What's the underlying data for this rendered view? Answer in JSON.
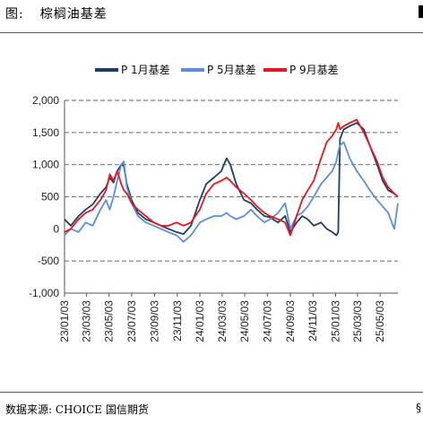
{
  "header": {
    "label": "图:",
    "title": "棕榈油基差"
  },
  "source": {
    "text": "数据来源: CHOICE 国信期货",
    "edge_text": "§"
  },
  "colors": {
    "p1": "#1f3d6b",
    "p5": "#5b8fd6",
    "p9": "#e8141e",
    "grid": "#7a7a7a",
    "axis": "#555555"
  },
  "chart_data": {
    "type": "line",
    "title": "",
    "xlabel": "",
    "ylabel": "",
    "ylim": [
      -1000,
      2000
    ],
    "yticks": [
      -1000,
      -500,
      0,
      500,
      1000,
      1500,
      2000
    ],
    "ytick_labels": [
      "-1,000",
      "-500",
      "0",
      "500",
      "1,000",
      "1,500",
      "2,000"
    ],
    "xticks": [
      "23/01/03",
      "23/03/03",
      "23/05/03",
      "23/07/03",
      "23/09/03",
      "23/11/03",
      "24/01/03",
      "24/03/03",
      "24/05/03",
      "24/07/03",
      "24/09/03",
      "24/11/03",
      "25/01/03",
      "25/03/03",
      "25/05/03"
    ],
    "grid": "horizontal dashed",
    "legend_position": "top",
    "x_range": [
      "2023-01-03",
      "2025-06-20"
    ],
    "series": [
      {
        "name": "P 1月基差",
        "color": "#1f3d6b",
        "points": [
          [
            "2023-01-03",
            150
          ],
          [
            "2023-01-20",
            50
          ],
          [
            "2023-02-10",
            200
          ],
          [
            "2023-03-01",
            300
          ],
          [
            "2023-03-20",
            380
          ],
          [
            "2023-04-10",
            550
          ],
          [
            "2023-04-25",
            650
          ],
          [
            "2023-05-05",
            800
          ],
          [
            "2023-05-15",
            720
          ],
          [
            "2023-05-25",
            900
          ],
          [
            "2023-06-05",
            1000
          ],
          [
            "2023-06-12",
            980
          ],
          [
            "2023-06-20",
            700
          ],
          [
            "2023-07-03",
            450
          ],
          [
            "2023-07-20",
            250
          ],
          [
            "2023-08-10",
            150
          ],
          [
            "2023-09-01",
            100
          ],
          [
            "2023-09-20",
            50
          ],
          [
            "2023-10-10",
            0
          ],
          [
            "2023-11-01",
            -50
          ],
          [
            "2023-11-20",
            -80
          ],
          [
            "2023-12-10",
            50
          ],
          [
            "2024-01-03",
            450
          ],
          [
            "2024-01-20",
            700
          ],
          [
            "2024-02-10",
            800
          ],
          [
            "2024-03-01",
            900
          ],
          [
            "2024-03-15",
            1100
          ],
          [
            "2024-03-25",
            1000
          ],
          [
            "2024-04-10",
            700
          ],
          [
            "2024-05-01",
            450
          ],
          [
            "2024-05-20",
            400
          ],
          [
            "2024-06-05",
            300
          ],
          [
            "2024-06-25",
            200
          ],
          [
            "2024-07-10",
            180
          ],
          [
            "2024-08-01",
            100
          ],
          [
            "2024-08-20",
            200
          ],
          [
            "2024-09-03",
            -50
          ],
          [
            "2024-09-20",
            100
          ],
          [
            "2024-10-05",
            200
          ],
          [
            "2024-10-20",
            150
          ],
          [
            "2024-11-05",
            50
          ],
          [
            "2024-11-25",
            100
          ],
          [
            "2024-12-10",
            0
          ],
          [
            "2024-12-25",
            -50
          ],
          [
            "2025-01-05",
            -100
          ],
          [
            "2025-01-10",
            -50
          ],
          [
            "2025-01-15",
            1400
          ],
          [
            "2025-01-25",
            1550
          ],
          [
            "2025-02-10",
            1600
          ],
          [
            "2025-03-01",
            1650
          ],
          [
            "2025-03-20",
            1550
          ],
          [
            "2025-04-05",
            1300
          ],
          [
            "2025-04-25",
            1000
          ],
          [
            "2025-05-10",
            750
          ],
          [
            "2025-05-25",
            600
          ],
          [
            "2025-06-10",
            550
          ],
          [
            "2025-06-20",
            500
          ]
        ]
      },
      {
        "name": "P 5月基差",
        "color": "#5b8fd6",
        "points": [
          [
            "2023-01-03",
            -100
          ],
          [
            "2023-01-20",
            0
          ],
          [
            "2023-02-10",
            -50
          ],
          [
            "2023-03-01",
            100
          ],
          [
            "2023-03-20",
            50
          ],
          [
            "2023-04-10",
            300
          ],
          [
            "2023-04-25",
            450
          ],
          [
            "2023-05-05",
            300
          ],
          [
            "2023-05-15",
            500
          ],
          [
            "2023-05-25",
            750
          ],
          [
            "2023-06-05",
            1000
          ],
          [
            "2023-06-12",
            1050
          ],
          [
            "2023-06-20",
            650
          ],
          [
            "2023-07-03",
            400
          ],
          [
            "2023-07-20",
            200
          ],
          [
            "2023-08-10",
            100
          ],
          [
            "2023-09-01",
            50
          ],
          [
            "2023-09-20",
            0
          ],
          [
            "2023-10-10",
            -50
          ],
          [
            "2023-11-01",
            -100
          ],
          [
            "2023-11-20",
            -200
          ],
          [
            "2023-12-10",
            -100
          ],
          [
            "2024-01-03",
            100
          ],
          [
            "2024-01-20",
            150
          ],
          [
            "2024-02-10",
            200
          ],
          [
            "2024-03-01",
            200
          ],
          [
            "2024-03-15",
            250
          ],
          [
            "2024-03-25",
            200
          ],
          [
            "2024-04-10",
            150
          ],
          [
            "2024-05-01",
            200
          ],
          [
            "2024-05-20",
            300
          ],
          [
            "2024-06-05",
            200
          ],
          [
            "2024-06-25",
            100
          ],
          [
            "2024-07-10",
            150
          ],
          [
            "2024-08-01",
            250
          ],
          [
            "2024-08-20",
            400
          ],
          [
            "2024-09-03",
            0
          ],
          [
            "2024-09-20",
            200
          ],
          [
            "2024-10-05",
            250
          ],
          [
            "2024-10-20",
            350
          ],
          [
            "2024-11-05",
            500
          ],
          [
            "2024-11-25",
            700
          ],
          [
            "2024-12-10",
            800
          ],
          [
            "2024-12-25",
            900
          ],
          [
            "2025-01-05",
            1050
          ],
          [
            "2025-01-10",
            1200
          ],
          [
            "2025-01-15",
            1300
          ],
          [
            "2025-01-25",
            1350
          ],
          [
            "2025-02-10",
            1100
          ],
          [
            "2025-03-01",
            900
          ],
          [
            "2025-03-20",
            750
          ],
          [
            "2025-04-05",
            600
          ],
          [
            "2025-04-25",
            450
          ],
          [
            "2025-05-10",
            350
          ],
          [
            "2025-05-25",
            250
          ],
          [
            "2025-06-10",
            0
          ],
          [
            "2025-06-20",
            400
          ]
        ]
      },
      {
        "name": "P 9月基差",
        "color": "#e8141e",
        "points": [
          [
            "2023-01-03",
            -50
          ],
          [
            "2023-01-20",
            0
          ],
          [
            "2023-02-10",
            150
          ],
          [
            "2023-03-01",
            250
          ],
          [
            "2023-03-20",
            300
          ],
          [
            "2023-04-10",
            450
          ],
          [
            "2023-04-25",
            600
          ],
          [
            "2023-05-05",
            850
          ],
          [
            "2023-05-15",
            750
          ],
          [
            "2023-05-25",
            900
          ],
          [
            "2023-06-05",
            700
          ],
          [
            "2023-06-12",
            600
          ],
          [
            "2023-06-20",
            550
          ],
          [
            "2023-07-03",
            400
          ],
          [
            "2023-07-20",
            300
          ],
          [
            "2023-08-10",
            200
          ],
          [
            "2023-09-01",
            100
          ],
          [
            "2023-09-20",
            50
          ],
          [
            "2023-10-10",
            50
          ],
          [
            "2023-11-01",
            100
          ],
          [
            "2023-11-20",
            50
          ],
          [
            "2023-12-10",
            100
          ],
          [
            "2024-01-03",
            300
          ],
          [
            "2024-01-20",
            550
          ],
          [
            "2024-02-10",
            700
          ],
          [
            "2024-03-01",
            750
          ],
          [
            "2024-03-15",
            800
          ],
          [
            "2024-03-25",
            750
          ],
          [
            "2024-04-10",
            650
          ],
          [
            "2024-05-01",
            550
          ],
          [
            "2024-05-20",
            450
          ],
          [
            "2024-06-05",
            350
          ],
          [
            "2024-06-25",
            250
          ],
          [
            "2024-07-10",
            200
          ],
          [
            "2024-08-01",
            150
          ],
          [
            "2024-08-20",
            100
          ],
          [
            "2024-09-03",
            -100
          ],
          [
            "2024-09-20",
            200
          ],
          [
            "2024-10-05",
            450
          ],
          [
            "2024-10-20",
            600
          ],
          [
            "2024-11-05",
            750
          ],
          [
            "2024-11-25",
            1100
          ],
          [
            "2024-12-10",
            1350
          ],
          [
            "2024-12-25",
            1450
          ],
          [
            "2025-01-05",
            1550
          ],
          [
            "2025-01-10",
            1650
          ],
          [
            "2025-01-15",
            1550
          ],
          [
            "2025-01-25",
            1600
          ],
          [
            "2025-02-10",
            1650
          ],
          [
            "2025-03-01",
            1700
          ],
          [
            "2025-03-20",
            1500
          ],
          [
            "2025-04-05",
            1300
          ],
          [
            "2025-04-25",
            1050
          ],
          [
            "2025-05-10",
            800
          ],
          [
            "2025-05-25",
            650
          ],
          [
            "2025-06-10",
            550
          ],
          [
            "2025-06-20",
            500
          ]
        ]
      }
    ]
  }
}
